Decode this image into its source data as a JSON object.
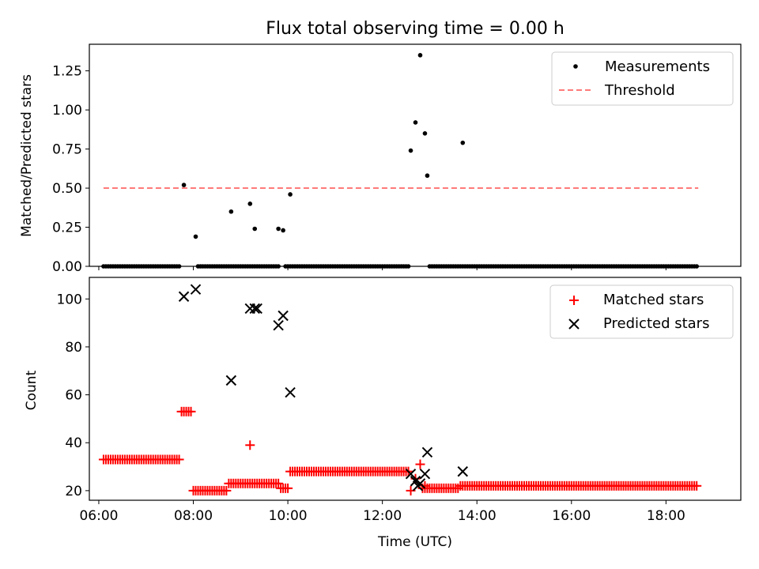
{
  "chart_data": [
    {
      "type": "scatter",
      "title": "Flux total observing time = 0.00 h",
      "xlabel": "",
      "ylabel": "Matched/Predicted stars",
      "xlim": [
        "05:48",
        "19:35"
      ],
      "ylim": [
        0,
        1.42
      ],
      "yticks": [
        "0.00",
        "0.25",
        "0.50",
        "0.75",
        "1.00",
        "1.25"
      ],
      "grid": false,
      "legend_position": "top-right",
      "series": [
        {
          "name": "Measurements",
          "marker": "dot",
          "color": "#000000",
          "points": [
            [
              "07:48",
              0.52
            ],
            [
              "08:03",
              0.19
            ],
            [
              "08:48",
              0.35
            ],
            [
              "09:12",
              0.4
            ],
            [
              "09:18",
              0.24
            ],
            [
              "09:48",
              0.24
            ],
            [
              "09:54",
              0.23
            ],
            [
              "10:03",
              0.46
            ],
            [
              "12:36",
              0.74
            ],
            [
              "12:42",
              0.92
            ],
            [
              "12:48",
              1.35
            ],
            [
              "12:54",
              0.85
            ],
            [
              "12:57",
              0.58
            ],
            [
              "13:42",
              0.79
            ]
          ],
          "zero_value_ranges": [
            [
              "06:06",
              "07:42"
            ],
            [
              "08:06",
              "09:48"
            ],
            [
              "09:57",
              "12:33"
            ],
            [
              "13:00",
              "18:41"
            ]
          ],
          "zero_value_y": 0
        },
        {
          "name": "Threshold",
          "style": "dashed",
          "color": "#ff7a7a",
          "x": [
            "06:06",
            "18:41"
          ],
          "values": [
            0.5,
            0.5
          ]
        }
      ]
    },
    {
      "type": "scatter",
      "title": "",
      "xlabel": "Time (UTC)",
      "ylabel": "Count",
      "xlim": [
        "05:48",
        "19:35"
      ],
      "ylim": [
        16,
        109
      ],
      "xticks": [
        "06:00",
        "08:00",
        "10:00",
        "12:00",
        "14:00",
        "16:00",
        "18:00"
      ],
      "yticks": [
        "20",
        "40",
        "60",
        "80",
        "100"
      ],
      "grid": false,
      "legend_position": "top-right",
      "series": [
        {
          "name": "Matched stars",
          "marker": "plus",
          "color": "#ff0000",
          "segments": [
            {
              "from": "06:06",
              "to": "07:42",
              "value": 33
            },
            {
              "from": "07:45",
              "to": "07:57",
              "value": 53
            },
            {
              "from": "08:00",
              "to": "08:42",
              "value": 20
            },
            {
              "from": "08:45",
              "to": "09:48",
              "value": 23
            },
            {
              "from": "09:51",
              "to": "10:00",
              "value": 21
            },
            {
              "from": "10:03",
              "to": "12:33",
              "value": 28
            },
            {
              "from": "12:51",
              "to": "13:36",
              "value": 21
            },
            {
              "from": "13:39",
              "to": "18:41",
              "value": 22
            }
          ],
          "points": [
            [
              "09:12",
              39
            ],
            [
              "12:36",
              20
            ],
            [
              "12:42",
              25
            ],
            [
              "12:48",
              31
            ],
            [
              "12:54",
              22
            ]
          ]
        },
        {
          "name": "Predicted stars",
          "marker": "x",
          "color": "#000000",
          "points": [
            [
              "07:48",
              101
            ],
            [
              "08:03",
              104
            ],
            [
              "08:48",
              66
            ],
            [
              "09:12",
              96
            ],
            [
              "09:18",
              96
            ],
            [
              "09:21",
              96
            ],
            [
              "09:48",
              89
            ],
            [
              "09:54",
              93
            ],
            [
              "10:03",
              61
            ],
            [
              "12:36",
              27
            ],
            [
              "12:42",
              24
            ],
            [
              "12:45",
              22
            ],
            [
              "12:48",
              23
            ],
            [
              "12:54",
              27
            ],
            [
              "12:57",
              36
            ],
            [
              "13:42",
              28
            ]
          ]
        }
      ]
    }
  ]
}
